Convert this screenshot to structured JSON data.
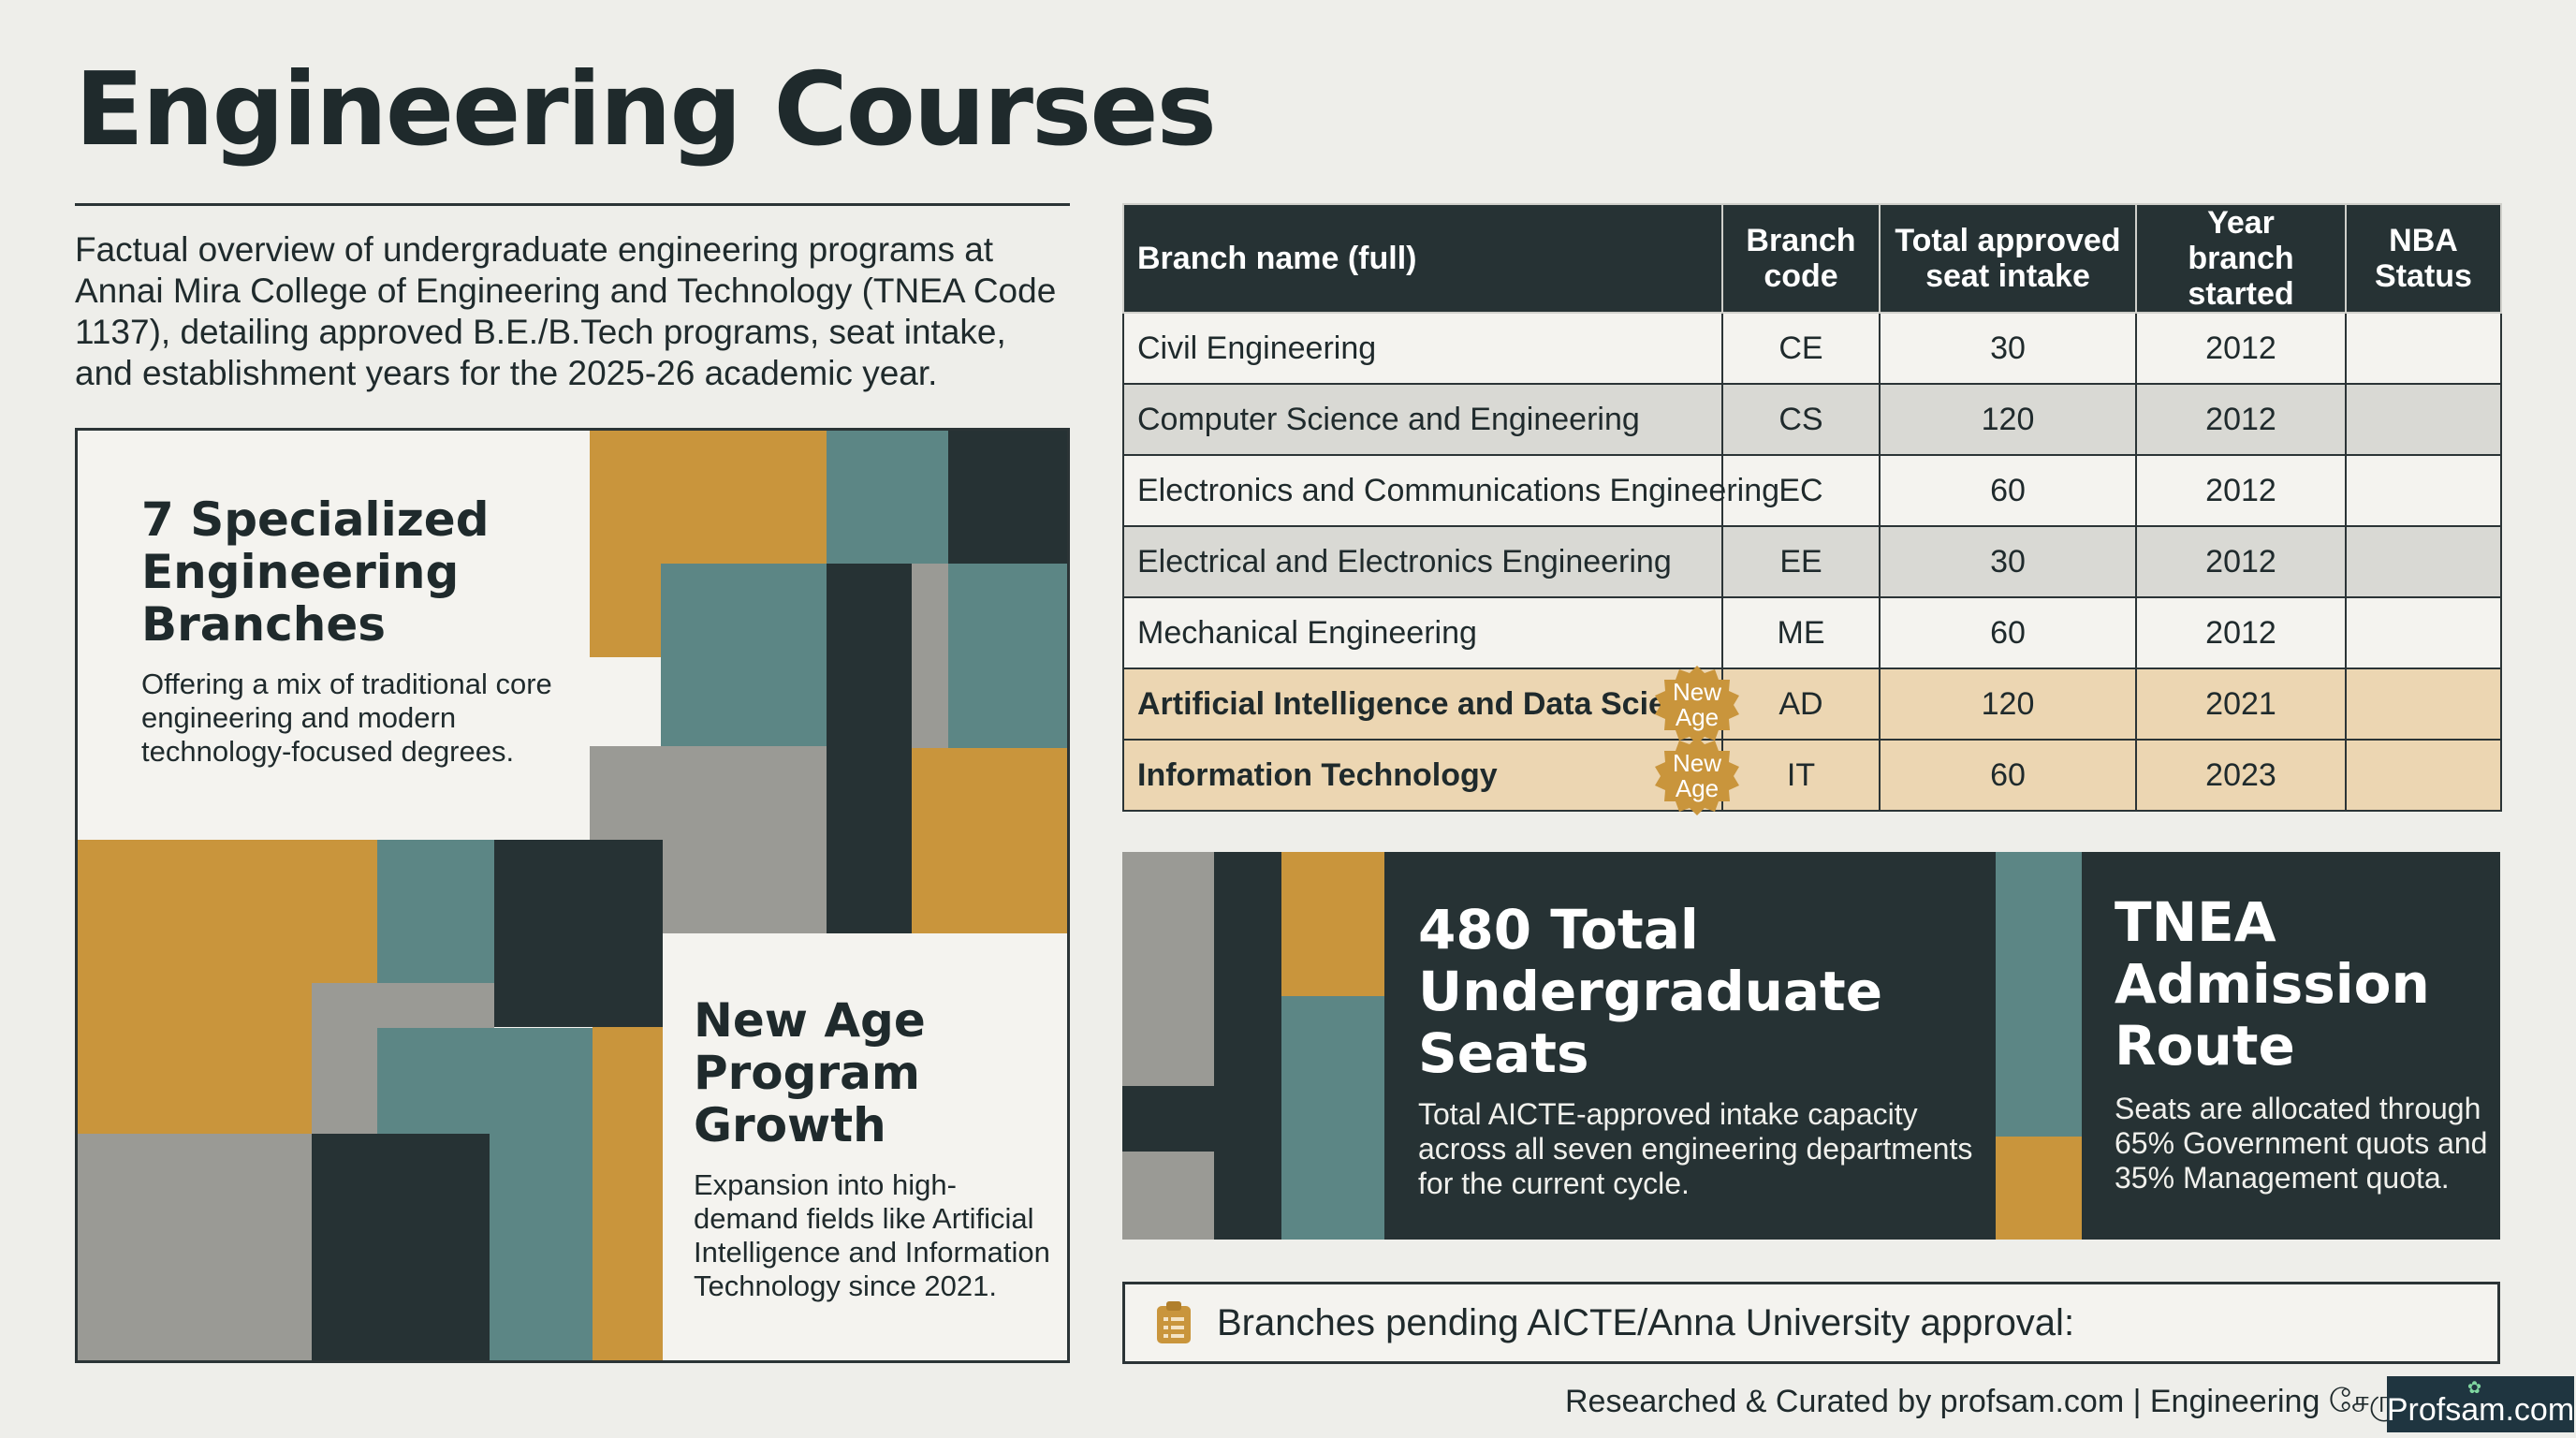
{
  "title": "Engineering Courses",
  "intro": "Factual overview of undergraduate engineering programs at Annai Mira College of Engineering and Technology (TNEA Code 1137), detailing approved B.E./B.Tech programs, seat intake, and establishment years for the 2025-26 academic year.",
  "cards": {
    "branches": {
      "heading": "7 Specialized Engineering Branches",
      "text": "Offering a mix of traditional core engineering and modern technology-focused degrees."
    },
    "growth": {
      "heading": "New Age Program Growth",
      "text": "Expansion into high-demand fields like Artificial Intelligence and Information Technology since 2021."
    }
  },
  "table": {
    "headers": [
      "Branch name (full)",
      "Branch code",
      "Total approved seat intake",
      "Year branch started",
      "NBA Status"
    ],
    "rows": [
      {
        "name": "Civil Engineering",
        "code": "CE",
        "intake": "30",
        "year": "2012",
        "nba": "",
        "badge": ""
      },
      {
        "name": "Computer Science and Engineering",
        "code": "CS",
        "intake": "120",
        "year": "2012",
        "nba": "",
        "badge": ""
      },
      {
        "name": "Electronics and Communications Engineering",
        "code": "EC",
        "intake": "60",
        "year": "2012",
        "nba": "",
        "badge": ""
      },
      {
        "name": "Electrical and Electronics Engineering",
        "code": "EE",
        "intake": "30",
        "year": "2012",
        "nba": "",
        "badge": ""
      },
      {
        "name": "Mechanical Engineering",
        "code": "ME",
        "intake": "60",
        "year": "2012",
        "nba": "",
        "badge": ""
      },
      {
        "name": "Artificial Intelligence and Data Science",
        "code": "AD",
        "intake": "120",
        "year": "2021",
        "nba": "",
        "badge": "New Age"
      },
      {
        "name": "Information Technology",
        "code": "IT",
        "intake": "60",
        "year": "2023",
        "nba": "",
        "badge": "New Age"
      }
    ]
  },
  "stats": {
    "seats": {
      "heading": "480 Total Undergraduate Seats",
      "text": "Total AICTE-approved intake capacity across all seven engineering departments for the current cycle."
    },
    "admission": {
      "heading": "TNEA Admission Route",
      "text": "Seats are allocated through 65% Government quots and 35% Management quota."
    }
  },
  "pending": {
    "icon": "clipboard-icon",
    "text": "Branches pending AICTE/Anna University approval:"
  },
  "footer": "Researched & Curated by profsam.com | Engineering சேருங்க",
  "logo": "Profsam.com",
  "colors": {
    "dark": "#263234",
    "teal": "#5c8685",
    "mustard": "#c9953c",
    "grey": "#9a9a95",
    "tan_row": "#ecd6b2"
  }
}
